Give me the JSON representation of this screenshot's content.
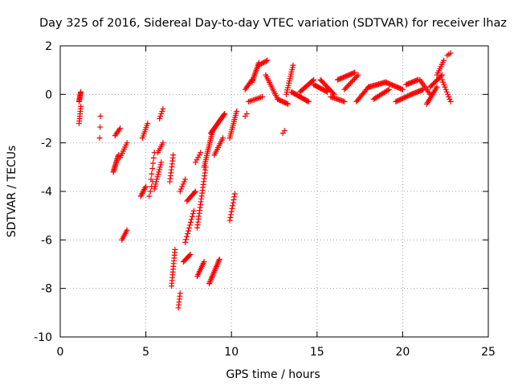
{
  "chart_data": {
    "type": "scatter",
    "title": "Day 325 of 2016, Sidereal Day-to-day VTEC variation (SDTVAR) for receiver lhaz",
    "xlabel": "GPS time / hours",
    "ylabel": "SDTVAR / TECUs",
    "xlim": [
      0,
      25
    ],
    "ylim": [
      -10,
      2
    ],
    "grid": true,
    "marker": "plus",
    "color": "#ff0000",
    "x_ticks": [
      0,
      5,
      10,
      15,
      20,
      25
    ],
    "y_ticks": [
      -10,
      -8,
      -6,
      -4,
      -2,
      0,
      2
    ],
    "x_tick_labels": [
      "0",
      "5",
      "10",
      "15",
      "20",
      "25"
    ],
    "y_tick_labels": [
      "-10",
      "-8",
      "-6",
      "-4",
      "-2",
      "0",
      "2"
    ],
    "series": [
      {
        "name": "SDTVAR",
        "segments": [
          {
            "x0": 1.1,
            "x1": 1.2,
            "y0": -0.3,
            "y1": 0.1,
            "n": 10
          },
          {
            "x0": 1.1,
            "x1": 1.2,
            "y0": -1.2,
            "y1": -0.5,
            "n": 8
          },
          {
            "x0": 2.3,
            "x1": 2.35,
            "y0": -1.8,
            "y1": -0.9,
            "n": 3
          },
          {
            "x0": 3.1,
            "x1": 3.4,
            "y0": -3.2,
            "y1": -2.5,
            "n": 14
          },
          {
            "x0": 3.2,
            "x1": 3.5,
            "y0": -1.7,
            "y1": -1.4,
            "n": 6
          },
          {
            "x0": 3.5,
            "x1": 3.9,
            "y0": -2.6,
            "y1": -2.0,
            "n": 8
          },
          {
            "x0": 3.6,
            "x1": 3.9,
            "y0": -6.0,
            "y1": -5.6,
            "n": 7
          },
          {
            "x0": 4.7,
            "x1": 5.0,
            "y0": -4.2,
            "y1": -3.8,
            "n": 8
          },
          {
            "x0": 4.8,
            "x1": 5.1,
            "y0": -1.8,
            "y1": -1.2,
            "n": 8
          },
          {
            "x0": 5.2,
            "x1": 5.4,
            "y0": -4.2,
            "y1": -3.6,
            "n": 4
          },
          {
            "x0": 5.3,
            "x1": 5.5,
            "y0": -3.5,
            "y1": -2.4,
            "n": 6
          },
          {
            "x0": 5.5,
            "x1": 5.9,
            "y0": -3.9,
            "y1": -2.8,
            "n": 12
          },
          {
            "x0": 5.7,
            "x1": 6.0,
            "y0": -2.4,
            "y1": -2.0,
            "n": 6
          },
          {
            "x0": 5.8,
            "x1": 6.0,
            "y0": -1.0,
            "y1": -0.6,
            "n": 5
          },
          {
            "x0": 6.4,
            "x1": 6.6,
            "y0": -3.6,
            "y1": -2.5,
            "n": 10
          },
          {
            "x0": 6.5,
            "x1": 6.7,
            "y0": -7.9,
            "y1": -6.4,
            "n": 14
          },
          {
            "x0": 6.9,
            "x1": 7.0,
            "y0": -8.8,
            "y1": -8.2,
            "n": 6
          },
          {
            "x0": 7.0,
            "x1": 7.3,
            "y0": -4.0,
            "y1": -3.5,
            "n": 6
          },
          {
            "x0": 7.2,
            "x1": 7.6,
            "y0": -6.9,
            "y1": -6.6,
            "n": 8
          },
          {
            "x0": 7.3,
            "x1": 7.8,
            "y0": -6.1,
            "y1": -4.8,
            "n": 12
          },
          {
            "x0": 7.4,
            "x1": 7.9,
            "y0": -4.4,
            "y1": -4.0,
            "n": 10
          },
          {
            "x0": 7.9,
            "x1": 8.2,
            "y0": -2.8,
            "y1": -2.4,
            "n": 5
          },
          {
            "x0": 8.0,
            "x1": 8.4,
            "y0": -7.5,
            "y1": -6.9,
            "n": 10
          },
          {
            "x0": 8.0,
            "x1": 8.5,
            "y0": -5.5,
            "y1": -3.0,
            "n": 22
          },
          {
            "x0": 8.4,
            "x1": 8.9,
            "y0": -3.0,
            "y1": -1.5,
            "n": 20
          },
          {
            "x0": 8.7,
            "x1": 9.3,
            "y0": -7.8,
            "y1": -6.8,
            "n": 18
          },
          {
            "x0": 8.8,
            "x1": 9.6,
            "y0": -1.6,
            "y1": -0.8,
            "n": 22
          },
          {
            "x0": 9.0,
            "x1": 9.5,
            "y0": -2.5,
            "y1": -1.8,
            "n": 10
          },
          {
            "x0": 9.9,
            "x1": 10.2,
            "y0": -5.2,
            "y1": -4.1,
            "n": 10
          },
          {
            "x0": 9.9,
            "x1": 10.3,
            "y0": -1.8,
            "y1": -0.7,
            "n": 14
          },
          {
            "x0": 10.8,
            "x1": 10.9,
            "y0": -0.9,
            "y1": -0.8,
            "n": 2
          },
          {
            "x0": 10.8,
            "x1": 11.2,
            "y0": 0.2,
            "y1": 0.6,
            "n": 8
          },
          {
            "x0": 11.0,
            "x1": 11.8,
            "y0": -0.3,
            "y1": -0.1,
            "n": 10
          },
          {
            "x0": 11.2,
            "x1": 11.6,
            "y0": 0.5,
            "y1": 1.3,
            "n": 14
          },
          {
            "x0": 11.6,
            "x1": 12.1,
            "y0": 1.2,
            "y1": 1.4,
            "n": 8
          },
          {
            "x0": 12.0,
            "x1": 12.7,
            "y0": 0.8,
            "y1": -0.2,
            "n": 14
          },
          {
            "x0": 12.7,
            "x1": 13.3,
            "y0": -0.2,
            "y1": -0.4,
            "n": 10
          },
          {
            "x0": 13.0,
            "x1": 13.1,
            "y0": -1.6,
            "y1": -1.5,
            "n": 2
          },
          {
            "x0": 13.2,
            "x1": 13.6,
            "y0": 0.0,
            "y1": 1.2,
            "n": 14
          },
          {
            "x0": 13.5,
            "x1": 14.5,
            "y0": 0.1,
            "y1": -0.3,
            "n": 18
          },
          {
            "x0": 14.0,
            "x1": 14.8,
            "y0": 0.1,
            "y1": 0.6,
            "n": 14
          },
          {
            "x0": 14.8,
            "x1": 15.6,
            "y0": 0.4,
            "y1": 0.1,
            "n": 14
          },
          {
            "x0": 15.2,
            "x1": 16.0,
            "y0": 0.6,
            "y1": 0.0,
            "n": 14
          },
          {
            "x0": 15.8,
            "x1": 16.6,
            "y0": -0.1,
            "y1": -0.3,
            "n": 12
          },
          {
            "x0": 16.2,
            "x1": 17.2,
            "y0": 0.6,
            "y1": 0.9,
            "n": 16
          },
          {
            "x0": 16.6,
            "x1": 17.4,
            "y0": 0.2,
            "y1": 0.8,
            "n": 12
          },
          {
            "x0": 17.3,
            "x1": 18.0,
            "y0": -0.3,
            "y1": 0.3,
            "n": 12
          },
          {
            "x0": 18.0,
            "x1": 19.0,
            "y0": 0.3,
            "y1": 0.5,
            "n": 16
          },
          {
            "x0": 18.3,
            "x1": 19.2,
            "y0": -0.2,
            "y1": 0.2,
            "n": 14
          },
          {
            "x0": 19.0,
            "x1": 20.0,
            "y0": 0.5,
            "y1": 0.2,
            "n": 16
          },
          {
            "x0": 19.6,
            "x1": 20.5,
            "y0": -0.3,
            "y1": 0.0,
            "n": 14
          },
          {
            "x0": 20.2,
            "x1": 20.9,
            "y0": 0.4,
            "y1": 0.6,
            "n": 12
          },
          {
            "x0": 20.5,
            "x1": 21.2,
            "y0": 0.0,
            "y1": 0.2,
            "n": 12
          },
          {
            "x0": 21.0,
            "x1": 21.6,
            "y0": 0.6,
            "y1": 0.0,
            "n": 10
          },
          {
            "x0": 21.4,
            "x1": 22.0,
            "y0": -0.4,
            "y1": 0.3,
            "n": 12
          },
          {
            "x0": 21.6,
            "x1": 22.3,
            "y0": 0.3,
            "y1": 0.8,
            "n": 12
          },
          {
            "x0": 22.0,
            "x1": 22.4,
            "y0": 0.8,
            "y1": 1.4,
            "n": 8
          },
          {
            "x0": 22.3,
            "x1": 22.8,
            "y0": 0.6,
            "y1": -0.3,
            "n": 10
          },
          {
            "x0": 22.6,
            "x1": 22.8,
            "y0": 1.6,
            "y1": 1.7,
            "n": 3
          }
        ]
      }
    ]
  }
}
